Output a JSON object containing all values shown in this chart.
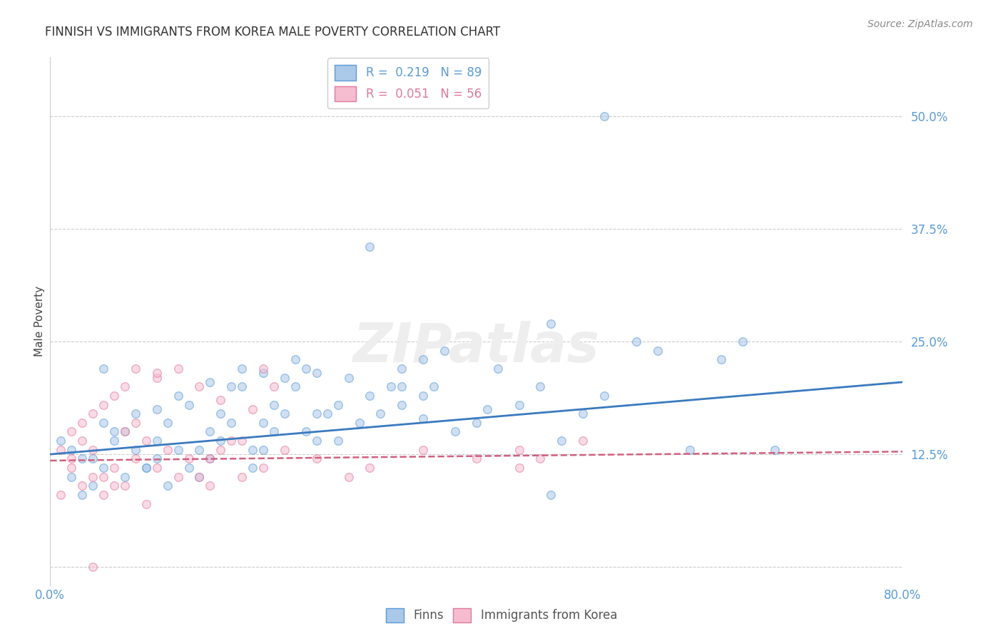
{
  "title": "FINNISH VS IMMIGRANTS FROM KOREA MALE POVERTY CORRELATION CHART",
  "source": "Source: ZipAtlas.com",
  "ylabel": "Male Poverty",
  "xlim": [
    0.0,
    0.8
  ],
  "ylim": [
    -0.02,
    0.565
  ],
  "xticks": [
    0.0,
    0.8
  ],
  "xtick_labels": [
    "0.0%",
    "80.0%"
  ],
  "yticks": [
    0.0,
    0.125,
    0.25,
    0.375,
    0.5
  ],
  "ytick_labels": [
    "",
    "12.5%",
    "25.0%",
    "37.5%",
    "50.0%"
  ],
  "grid_color": "#cccccc",
  "background_color": "#ffffff",
  "finns_color": "#aac8e8",
  "finns_edge_color": "#5b9bd5",
  "korea_color": "#f5bcd0",
  "korea_edge_color": "#e07898",
  "trend_finns_color": "#3a7abf",
  "trend_korea_color": "#d06080",
  "legend_finns_label": "R =  0.219   N = 89",
  "legend_korea_label": "R =  0.051   N = 56",
  "watermark": "ZIPatlas",
  "bottom_legend_finns": "Finns",
  "bottom_legend_korea": "Immigrants from Korea",
  "marker_size": 70,
  "marker_alpha": 0.55,
  "finns_x": [
    0.02,
    0.03,
    0.04,
    0.02,
    0.05,
    0.01,
    0.03,
    0.06,
    0.04,
    0.07,
    0.08,
    0.05,
    0.09,
    0.06,
    0.1,
    0.08,
    0.11,
    0.07,
    0.12,
    0.09,
    0.13,
    0.1,
    0.14,
    0.11,
    0.15,
    0.12,
    0.16,
    0.13,
    0.17,
    0.14,
    0.18,
    0.15,
    0.19,
    0.16,
    0.2,
    0.17,
    0.21,
    0.18,
    0.22,
    0.19,
    0.23,
    0.2,
    0.24,
    0.21,
    0.25,
    0.22,
    0.26,
    0.23,
    0.27,
    0.24,
    0.28,
    0.25,
    0.3,
    0.27,
    0.32,
    0.29,
    0.33,
    0.31,
    0.35,
    0.33,
    0.37,
    0.35,
    0.38,
    0.36,
    0.4,
    0.42,
    0.44,
    0.46,
    0.47,
    0.48,
    0.5,
    0.52,
    0.55,
    0.57,
    0.6,
    0.63,
    0.65,
    0.68,
    0.52,
    0.3,
    0.47,
    0.35,
    0.2,
    0.1,
    0.05,
    0.41,
    0.33,
    0.25,
    0.15
  ],
  "finns_y": [
    0.1,
    0.12,
    0.09,
    0.13,
    0.11,
    0.14,
    0.08,
    0.15,
    0.12,
    0.1,
    0.13,
    0.16,
    0.11,
    0.14,
    0.12,
    0.17,
    0.09,
    0.15,
    0.13,
    0.11,
    0.18,
    0.14,
    0.1,
    0.16,
    0.12,
    0.19,
    0.14,
    0.11,
    0.16,
    0.13,
    0.2,
    0.15,
    0.11,
    0.17,
    0.13,
    0.2,
    0.15,
    0.22,
    0.17,
    0.13,
    0.2,
    0.16,
    0.22,
    0.18,
    0.14,
    0.21,
    0.17,
    0.23,
    0.18,
    0.15,
    0.21,
    0.17,
    0.19,
    0.14,
    0.2,
    0.16,
    0.22,
    0.17,
    0.23,
    0.18,
    0.24,
    0.19,
    0.15,
    0.2,
    0.16,
    0.22,
    0.18,
    0.2,
    0.08,
    0.14,
    0.17,
    0.19,
    0.25,
    0.24,
    0.13,
    0.23,
    0.25,
    0.13,
    0.5,
    0.355,
    0.27,
    0.165,
    0.215,
    0.175,
    0.22,
    0.175,
    0.2,
    0.215,
    0.205
  ],
  "korea_x": [
    0.01,
    0.02,
    0.01,
    0.03,
    0.02,
    0.04,
    0.03,
    0.05,
    0.02,
    0.06,
    0.04,
    0.07,
    0.03,
    0.08,
    0.05,
    0.09,
    0.04,
    0.1,
    0.06,
    0.11,
    0.05,
    0.12,
    0.07,
    0.13,
    0.06,
    0.14,
    0.08,
    0.15,
    0.07,
    0.16,
    0.09,
    0.17,
    0.1,
    0.18,
    0.08,
    0.2,
    0.12,
    0.22,
    0.15,
    0.25,
    0.18,
    0.28,
    0.2,
    0.3,
    0.35,
    0.4,
    0.44,
    0.44,
    0.46,
    0.5,
    0.14,
    0.16,
    0.19,
    0.21,
    0.1,
    0.04
  ],
  "korea_y": [
    0.08,
    0.11,
    0.13,
    0.09,
    0.12,
    0.1,
    0.14,
    0.08,
    0.15,
    0.11,
    0.13,
    0.09,
    0.16,
    0.12,
    0.1,
    0.14,
    0.17,
    0.11,
    0.09,
    0.13,
    0.18,
    0.1,
    0.15,
    0.12,
    0.19,
    0.1,
    0.16,
    0.12,
    0.2,
    0.13,
    0.07,
    0.14,
    0.21,
    0.1,
    0.22,
    0.11,
    0.22,
    0.13,
    0.09,
    0.12,
    0.14,
    0.1,
    0.22,
    0.11,
    0.13,
    0.12,
    0.13,
    0.11,
    0.12,
    0.14,
    0.2,
    0.185,
    0.175,
    0.2,
    0.215,
    0.0
  ]
}
